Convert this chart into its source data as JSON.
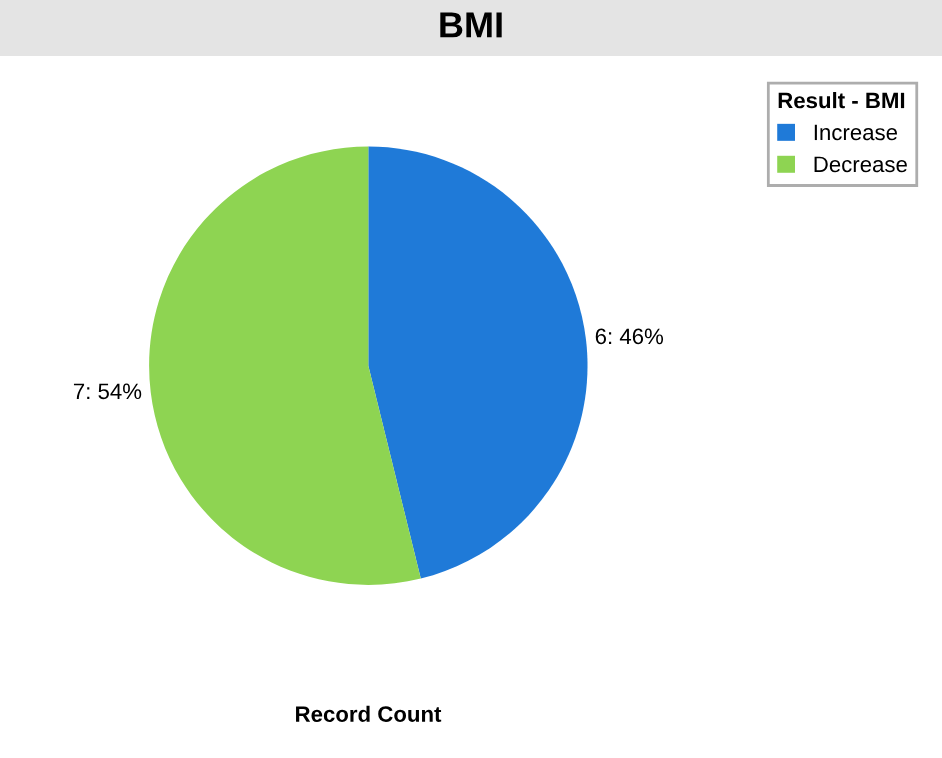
{
  "chart_data": {
    "type": "pie",
    "title": "BMI",
    "xlabel": "Record Count",
    "legend_title": "Result - BMI",
    "legend": "top right",
    "categories": [
      "Increase",
      "Decrease"
    ],
    "values": [
      6,
      7
    ],
    "colors": [
      "#1f7ad8",
      "#8ed452"
    ],
    "value_labels": [
      "6: 46%",
      "7: 54%"
    ]
  }
}
